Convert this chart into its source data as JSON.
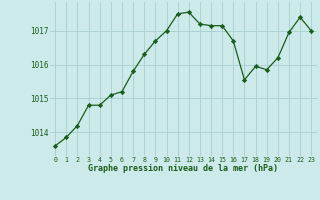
{
  "x": [
    0,
    1,
    2,
    3,
    4,
    5,
    6,
    7,
    8,
    9,
    10,
    11,
    12,
    13,
    14,
    15,
    16,
    17,
    18,
    19,
    20,
    21,
    22,
    23
  ],
  "y": [
    1013.6,
    1013.85,
    1014.2,
    1014.8,
    1014.8,
    1015.1,
    1015.2,
    1015.8,
    1016.3,
    1016.7,
    1017.0,
    1017.5,
    1017.55,
    1017.2,
    1017.15,
    1017.15,
    1016.7,
    1015.55,
    1015.95,
    1015.85,
    1016.2,
    1016.95,
    1017.4,
    1017.0
  ],
  "line_color": "#1a5c1a",
  "marker": "D",
  "marker_size": 2.2,
  "bg_color": "#cdeaea",
  "grid_color": "#a8cece",
  "xlabel": "Graphe pression niveau de la mer (hPa)",
  "xlabel_color": "#1a5c1a",
  "tick_color": "#1a5c1a",
  "yticks": [
    1014,
    1015,
    1016,
    1017
  ],
  "ylim": [
    1013.3,
    1017.85
  ],
  "xlim": [
    -0.5,
    23.5
  ]
}
